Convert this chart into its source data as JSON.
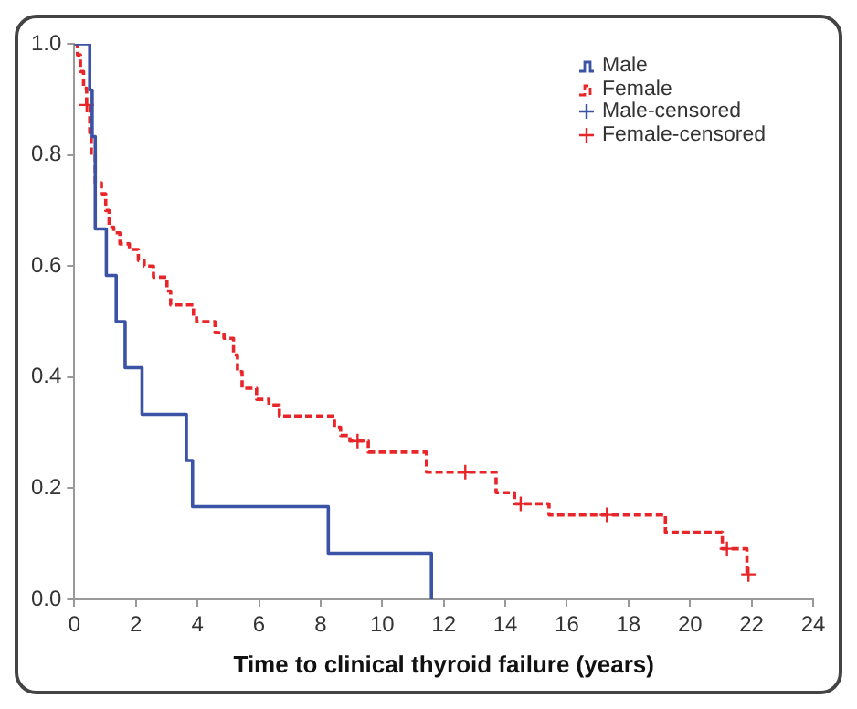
{
  "chart_data": {
    "type": "step",
    "xlabel": "Time to clinical thyroid failure (years)",
    "xlim": [
      0,
      24
    ],
    "xticks": [
      0,
      2,
      4,
      6,
      8,
      10,
      12,
      14,
      16,
      18,
      20,
      22,
      24
    ],
    "ylim": [
      0,
      1
    ],
    "yticks": [
      {
        "value": 0,
        "label": "0.0"
      },
      0.2,
      0.4,
      0.6,
      0.8,
      {
        "value": 1,
        "label": "1.0"
      }
    ],
    "grid": false,
    "legend": "top right",
    "series": [
      {
        "name": "Male",
        "color": "#3a53a4",
        "line_style": "solid",
        "marker": "none",
        "x": [
          0,
          0.5,
          0.58,
          0.68,
          1.04,
          1.36,
          1.65,
          2.2,
          3.64,
          3.84,
          8.25,
          11.6
        ],
        "values": [
          1.0,
          0.917,
          0.833,
          0.667,
          0.583,
          0.5,
          0.417,
          0.333,
          0.25,
          0.167,
          0.083,
          0
        ]
      },
      {
        "name": "Female",
        "color": "#e8262a",
        "line_style": "dashed",
        "marker": "none",
        "x": [
          0,
          0.1,
          0.2,
          0.3,
          0.4,
          0.5,
          0.55,
          0.68,
          0.88,
          1.02,
          1.13,
          1.28,
          1.48,
          1.79,
          2.08,
          2.27,
          2.57,
          3.01,
          3.13,
          3.87,
          3.97,
          4.57,
          4.86,
          5.17,
          5.3,
          5.45,
          5.92,
          6.32,
          6.66,
          8.45,
          8.65,
          8.95,
          9.55,
          11.44,
          13.7,
          14.3,
          15.42,
          19.2,
          21.05,
          21.85
        ],
        "values": [
          1.0,
          0.98,
          0.95,
          0.92,
          0.89,
          0.84,
          0.8,
          0.75,
          0.73,
          0.7,
          0.67,
          0.66,
          0.64,
          0.63,
          0.61,
          0.6,
          0.58,
          0.555,
          0.53,
          0.51,
          0.5,
          0.48,
          0.47,
          0.44,
          0.41,
          0.38,
          0.36,
          0.35,
          0.33,
          0.31,
          0.295,
          0.285,
          0.265,
          0.229,
          0.192,
          0.172,
          0.152,
          0.121,
          0.091,
          0.045
        ]
      },
      {
        "name": "Male-censored",
        "type": "scatter",
        "color": "#3a53a4",
        "marker": "cross"
      },
      {
        "name": "Female-censored",
        "type": "scatter",
        "color": "#e8262a",
        "marker": "cross",
        "x": [
          0.4,
          9.2,
          12.7,
          14.5,
          17.3,
          21.2,
          21.9
        ],
        "values": [
          0.89,
          0.285,
          0.229,
          0.172,
          0.152,
          0.091,
          0.045
        ]
      }
    ]
  }
}
